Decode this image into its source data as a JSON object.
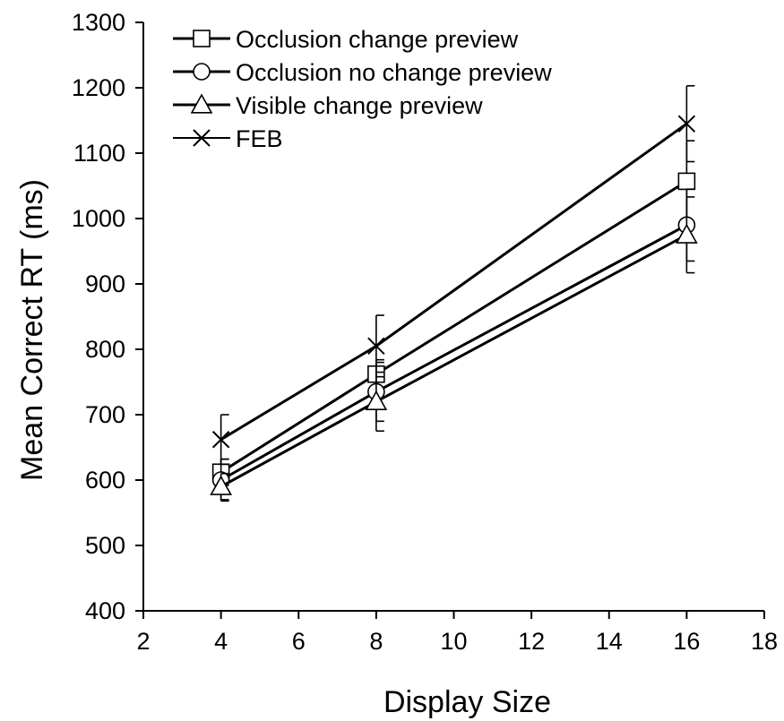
{
  "chart_data": {
    "type": "line",
    "title": "",
    "xlabel": "Display Size",
    "ylabel": "Mean Correct RT (ms)",
    "xlim": [
      2,
      18
    ],
    "ylim": [
      400,
      1300
    ],
    "xticks": [
      "2",
      "4",
      "6",
      "8",
      "10",
      "12",
      "14",
      "16",
      "18"
    ],
    "yticks": [
      "400",
      "500",
      "600",
      "700",
      "800",
      "900",
      "1000",
      "1100",
      "1200",
      "1300"
    ],
    "x": [
      4,
      8,
      16
    ],
    "grid": false,
    "legend_position": "top-left",
    "series": [
      {
        "name": "Occlusion change preview",
        "marker": "square",
        "values": [
          612,
          762,
          1057
        ],
        "error": [
          20,
          22,
          62
        ]
      },
      {
        "name": "Occlusion no change preview",
        "marker": "circle",
        "values": [
          600,
          735,
          990
        ],
        "error": [
          32,
          45,
          55
        ]
      },
      {
        "name": "Visible change preview",
        "marker": "triangle",
        "values": [
          590,
          720,
          975
        ],
        "error": [
          20,
          45,
          58
        ]
      },
      {
        "name": "FEB",
        "marker": "x",
        "values": [
          662,
          805,
          1145
        ],
        "error": [
          38,
          47,
          58
        ]
      }
    ],
    "colors": {
      "line": "#000000",
      "marker_fill": "#ffffff",
      "background": "#ffffff"
    }
  }
}
